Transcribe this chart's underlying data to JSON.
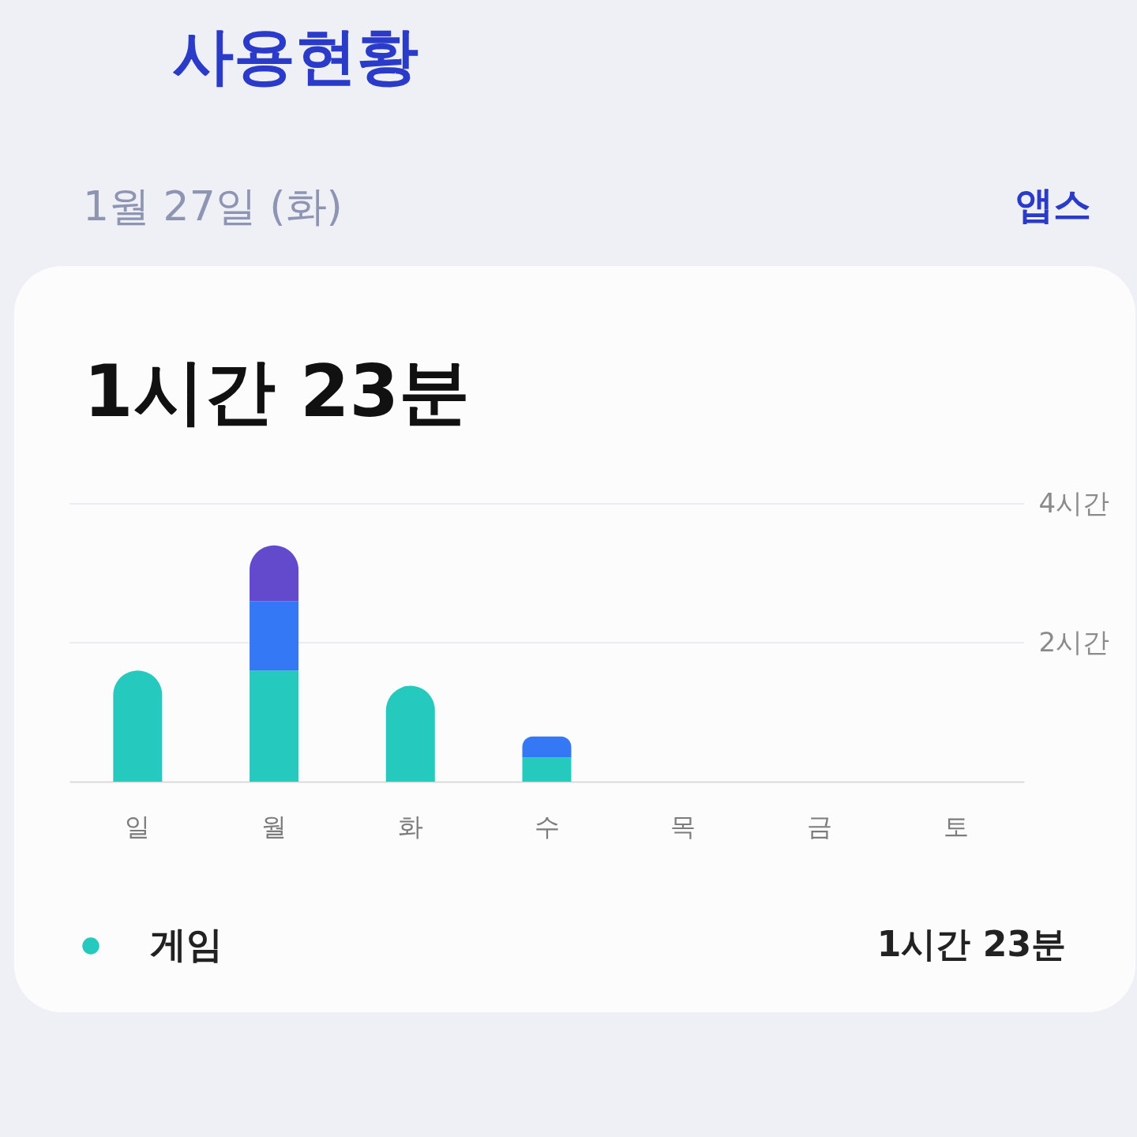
{
  "chart_data": {
    "type": "bar",
    "title": "사용현황",
    "subtitle": "1월 27일 (화)",
    "categories": [
      "일",
      "월",
      "화",
      "수",
      "목",
      "금",
      "토"
    ],
    "series": [
      {
        "name": "게임",
        "color": "#26c9bd",
        "values": [
          1.6,
          1.6,
          1.38,
          0.35,
          null,
          null,
          null
        ]
      },
      {
        "color": "#3478f6",
        "values": [
          null,
          1.0,
          null,
          0.3,
          null,
          null,
          null
        ]
      },
      {
        "color": "#6349cc",
        "values": [
          null,
          0.8,
          null,
          null,
          null,
          null,
          null
        ]
      }
    ],
    "stacked": true,
    "ylim": [
      0,
      4
    ],
    "yticks": [
      {
        "value": 2,
        "label": "2시간"
      },
      {
        "value": 4,
        "label": "4시간"
      }
    ],
    "grid": "y",
    "legend": "bottom",
    "annotations": [
      "앱스",
      "1시간 23분",
      "1시간 23분"
    ]
  }
}
